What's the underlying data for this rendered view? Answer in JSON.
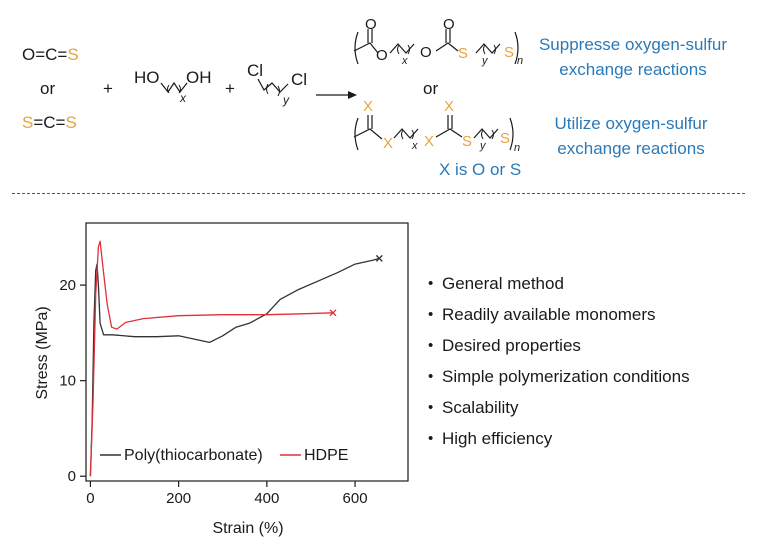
{
  "reaction": {
    "reactant_cos": [
      "O=C=",
      "S"
    ],
    "or_left": "or",
    "reactant_cs2": [
      "S",
      "=C=",
      "S"
    ],
    "plus1": "+",
    "diol_ho": "HO",
    "diol_oh": "OH",
    "diol_x": "x",
    "plus2": "+",
    "dichloride_cl1": "Cl",
    "dichloride_cl2": "Cl",
    "dichloride_y": "y",
    "or_middle": "or",
    "product1": {
      "o1": "O",
      "o2": "O",
      "o3": "O",
      "o4": "O",
      "s1": "S",
      "s2": "S",
      "x": "x",
      "y": "y",
      "n": "n"
    },
    "product2": {
      "x1": "X",
      "x2": "X",
      "x3": "X",
      "x4": "X",
      "s1": "S",
      "s2": "S",
      "x": "x",
      "y": "y",
      "n": "n"
    },
    "note1": [
      "Suppresse oxygen-sulfur",
      "exchange reactions"
    ],
    "note2": [
      "Utilize oxygen-sulfur",
      "exchange reactions"
    ],
    "x_note": "X is O or S"
  },
  "colors": {
    "orange": "#e8a33d",
    "blue": "#2a7ab8",
    "red": "#e0303a",
    "dark": "#333333"
  },
  "chart_data": {
    "type": "line",
    "xlabel": "Strain (%)",
    "ylabel": "Stress (MPa)",
    "xlim": [
      -10,
      720
    ],
    "ylim": [
      -0.5,
      26.5
    ],
    "xticks": [
      0,
      200,
      400,
      600
    ],
    "yticks": [
      0,
      10,
      20
    ],
    "legend_position": "bottom",
    "series": [
      {
        "name": "Poly(thiocarbonate)",
        "color": "#333333",
        "points": [
          [
            0,
            0
          ],
          [
            4,
            6
          ],
          [
            8,
            16
          ],
          [
            12,
            21.5
          ],
          [
            15,
            22.2
          ],
          [
            18,
            20
          ],
          [
            22,
            16
          ],
          [
            30,
            14.8
          ],
          [
            50,
            14.8
          ],
          [
            100,
            14.6
          ],
          [
            150,
            14.6
          ],
          [
            200,
            14.7
          ],
          [
            250,
            14.2
          ],
          [
            270,
            14.0
          ],
          [
            300,
            14.7
          ],
          [
            330,
            15.6
          ],
          [
            360,
            16.0
          ],
          [
            380,
            16.5
          ],
          [
            400,
            17.0
          ],
          [
            430,
            18.5
          ],
          [
            470,
            19.5
          ],
          [
            520,
            20.5
          ],
          [
            560,
            21.3
          ],
          [
            600,
            22.2
          ],
          [
            640,
            22.6
          ],
          [
            655,
            22.8
          ]
        ],
        "end_marker": "x"
      },
      {
        "name": "HDPE",
        "color": "#e0303a",
        "points": [
          [
            0,
            0
          ],
          [
            6,
            8
          ],
          [
            12,
            19
          ],
          [
            18,
            24
          ],
          [
            22,
            24.6
          ],
          [
            28,
            22
          ],
          [
            38,
            18
          ],
          [
            48,
            15.6
          ],
          [
            60,
            15.4
          ],
          [
            80,
            16.1
          ],
          [
            120,
            16.5
          ],
          [
            200,
            16.8
          ],
          [
            300,
            16.9
          ],
          [
            400,
            16.9
          ],
          [
            480,
            17.0
          ],
          [
            550,
            17.1
          ]
        ],
        "end_marker": "x"
      }
    ]
  },
  "features": [
    "General method",
    "Readily available monomers",
    "Desired properties",
    "Simple polymerization conditions",
    "Scalability",
    "High efficiency"
  ],
  "bullet_symbol": "•"
}
